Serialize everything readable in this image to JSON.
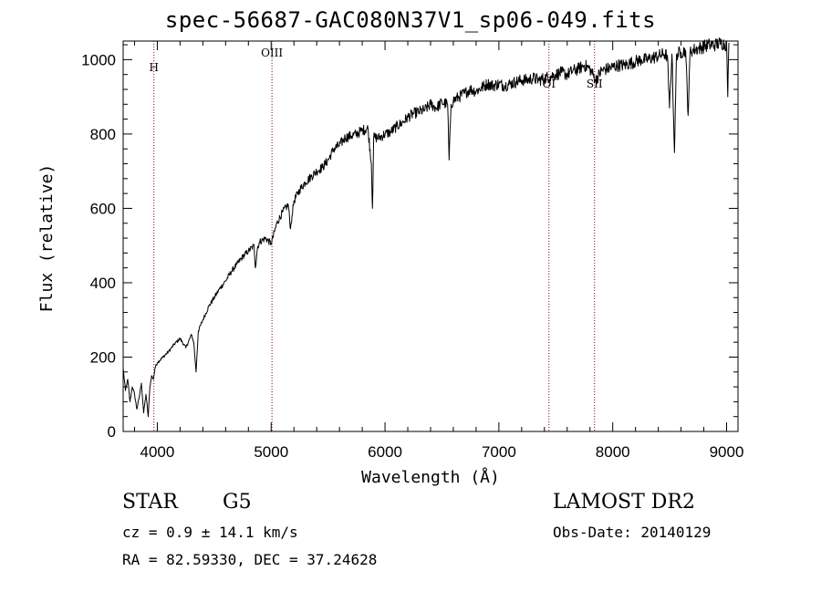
{
  "header": {
    "title": "spec-56687-GAC080N37V1_sp06-049.fits"
  },
  "info": {
    "class": "STAR",
    "subclass": "G5",
    "survey": "LAMOST DR2",
    "cz": "cz = 0.9 ± 14.1 km/s",
    "obs_date": "Obs-Date: 20140129",
    "radec": "RA =  82.59330, DEC =  37.24628"
  },
  "colors": {
    "spectrum": "#000000",
    "line_marker": "#8b0000",
    "axes": "#000000"
  },
  "chart_data": {
    "type": "line",
    "title": "spec-56687-GAC080N37V1_sp06-049.fits",
    "xlabel": "Wavelength (Å)",
    "ylabel": "Flux (relative)",
    "xlim": [
      3700,
      9100
    ],
    "ylim": [
      0,
      1050
    ],
    "xticks": [
      4000,
      5000,
      6000,
      7000,
      8000,
      9000
    ],
    "yticks": [
      0,
      200,
      400,
      600,
      800,
      1000
    ],
    "grid": false,
    "series": [
      {
        "x": [
          3700,
          3720,
          3740,
          3760,
          3780,
          3800,
          3820,
          3840,
          3860,
          3880,
          3900,
          3920,
          3935,
          3950,
          3965,
          3980,
          4000,
          4050,
          4100,
          4150,
          4200,
          4250,
          4300,
          4320,
          4340,
          4360,
          4400,
          4450,
          4500,
          4550,
          4600,
          4650,
          4700,
          4750,
          4800,
          4850,
          4861,
          4880,
          4900,
          4950,
          5000,
          5050,
          5100,
          5150,
          5170,
          5183,
          5200,
          5250,
          5300,
          5350,
          5400,
          5450,
          5500,
          5550,
          5600,
          5650,
          5700,
          5750,
          5800,
          5850,
          5880,
          5890,
          5900,
          5950,
          6000,
          6050,
          6100,
          6150,
          6200,
          6250,
          6300,
          6350,
          6400,
          6450,
          6500,
          6550,
          6563,
          6580,
          6600,
          6650,
          6700,
          6750,
          6800,
          6850,
          6900,
          6950,
          7000,
          7050,
          7100,
          7150,
          7200,
          7250,
          7300,
          7350,
          7400,
          7450,
          7500,
          7550,
          7600,
          7650,
          7700,
          7750,
          7800,
          7850,
          7900,
          7950,
          8000,
          8050,
          8100,
          8150,
          8200,
          8250,
          8300,
          8350,
          8400,
          8450,
          8480,
          8498,
          8520,
          8542,
          8560,
          8600,
          8640,
          8662,
          8680,
          8700,
          8750,
          8800,
          8850,
          8900,
          8950,
          9000,
          9010,
          9020
        ],
        "y": [
          170,
          110,
          140,
          80,
          120,
          100,
          60,
          90,
          130,
          50,
          100,
          40,
          120,
          150,
          140,
          170,
          185,
          200,
          215,
          235,
          250,
          225,
          260,
          240,
          160,
          270,
          300,
          335,
          360,
          385,
          405,
          430,
          450,
          470,
          485,
          500,
          440,
          495,
          510,
          520,
          505,
          560,
          590,
          610,
          545,
          580,
          620,
          650,
          670,
          685,
          700,
          710,
          730,
          760,
          770,
          790,
          795,
          800,
          810,
          815,
          720,
          600,
          790,
          790,
          800,
          805,
          820,
          830,
          845,
          855,
          860,
          865,
          880,
          870,
          885,
          880,
          730,
          880,
          890,
          900,
          910,
          920,
          915,
          925,
          935,
          930,
          935,
          930,
          935,
          940,
          945,
          945,
          950,
          945,
          950,
          955,
          960,
          965,
          960,
          970,
          975,
          985,
          975,
          945,
          970,
          975,
          980,
          985,
          985,
          990,
          995,
          1000,
          1000,
          1005,
          1010,
          1015,
          1010,
          870,
          1015,
          750,
          1015,
          1020,
          1025,
          850,
          1025,
          1025,
          1030,
          1035,
          1040,
          1040,
          1045,
          1040,
          900,
          1045
        ]
      }
    ],
    "lines": [
      {
        "label": "H",
        "x": 3970
      },
      {
        "label": "OIII",
        "x": 5007
      },
      {
        "label": "OI",
        "x": 7440
      },
      {
        "label": "SII",
        "x": 7840
      }
    ]
  }
}
